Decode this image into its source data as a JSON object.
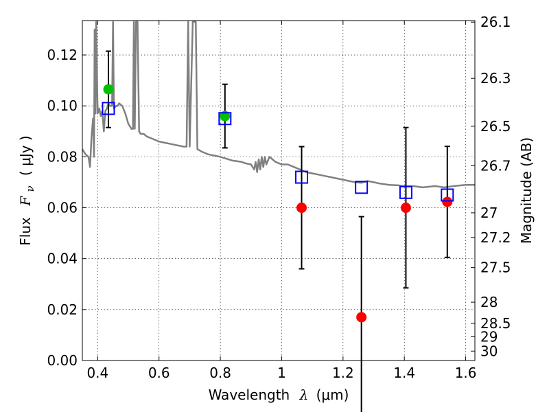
{
  "chart_data": {
    "type": "scatter",
    "xlabel": {
      "text": "Wavelength",
      "symbol": "λ",
      "unit": "(μm)"
    },
    "ylabel": {
      "text": "Flux",
      "symbol": "F",
      "subscript": "ν",
      "unit": "( μJy )"
    },
    "y2label": "Magnitude (AB)",
    "xlim": [
      0.35,
      1.63
    ],
    "ylim": [
      0.0,
      0.1335
    ],
    "grid": true,
    "x_ticks": [
      {
        "value": 0.4,
        "label": "0.4"
      },
      {
        "value": 0.6,
        "label": "0.6"
      },
      {
        "value": 0.8,
        "label": "0.8"
      },
      {
        "value": 1.0,
        "label": "1"
      },
      {
        "value": 1.2,
        "label": "1.2"
      },
      {
        "value": 1.4,
        "label": "1.4"
      },
      {
        "value": 1.6,
        "label": "1.6"
      }
    ],
    "y_ticks": [
      {
        "value": 0.0,
        "label": "0.00"
      },
      {
        "value": 0.02,
        "label": "0.02"
      },
      {
        "value": 0.04,
        "label": "0.04"
      },
      {
        "value": 0.06,
        "label": "0.06"
      },
      {
        "value": 0.08,
        "label": "0.08"
      },
      {
        "value": 0.1,
        "label": "0.10"
      },
      {
        "value": 0.12,
        "label": "0.12"
      }
    ],
    "y2_ticks": [
      {
        "label": "26.1",
        "flux": 0.1329
      },
      {
        "label": "26.3",
        "flux": 0.1108
      },
      {
        "label": "26.5",
        "flux": 0.092
      },
      {
        "label": "26.7",
        "flux": 0.0765
      },
      {
        "label": "27",
        "flux": 0.058
      },
      {
        "label": "27.2",
        "flux": 0.0483
      },
      {
        "label": "27.5",
        "flux": 0.0365
      },
      {
        "label": "28",
        "flux": 0.0229
      },
      {
        "label": "28.5",
        "flux": 0.0146
      },
      {
        "label": "29",
        "flux": 0.0093
      },
      {
        "label": "30",
        "flux": 0.0037
      }
    ],
    "series": [
      {
        "kind": "model",
        "color": "#808080",
        "points": [
          [
            0.35,
            0.083
          ],
          [
            0.36,
            0.081
          ],
          [
            0.37,
            0.08
          ],
          [
            0.375,
            0.076
          ],
          [
            0.38,
            0.088
          ],
          [
            0.385,
            0.095
          ],
          [
            0.388,
            0.08
          ],
          [
            0.39,
            0.13
          ],
          [
            0.393,
            0.097
          ],
          [
            0.395,
            0.133
          ],
          [
            0.4,
            0.097
          ],
          [
            0.405,
            0.099
          ],
          [
            0.41,
            0.096
          ],
          [
            0.415,
            0.098
          ],
          [
            0.42,
            0.09
          ],
          [
            0.425,
            0.098
          ],
          [
            0.43,
            0.099
          ],
          [
            0.435,
            0.101
          ],
          [
            0.44,
            0.1
          ],
          [
            0.447,
            0.1
          ],
          [
            0.45,
            0.133
          ],
          [
            0.453,
            0.099
          ],
          [
            0.46,
            0.1
          ],
          [
            0.465,
            0.1
          ],
          [
            0.47,
            0.101
          ],
          [
            0.48,
            0.1
          ],
          [
            0.49,
            0.097
          ],
          [
            0.5,
            0.093
          ],
          [
            0.51,
            0.091
          ],
          [
            0.515,
            0.091
          ],
          [
            0.518,
            0.133
          ],
          [
            0.521,
            0.091
          ],
          [
            0.525,
            0.133
          ],
          [
            0.53,
            0.133
          ],
          [
            0.535,
            0.09
          ],
          [
            0.54,
            0.089
          ],
          [
            0.55,
            0.089
          ],
          [
            0.56,
            0.088
          ],
          [
            0.58,
            0.087
          ],
          [
            0.6,
            0.086
          ],
          [
            0.62,
            0.0855
          ],
          [
            0.64,
            0.085
          ],
          [
            0.66,
            0.0845
          ],
          [
            0.68,
            0.084
          ],
          [
            0.69,
            0.084
          ],
          [
            0.695,
            0.133
          ],
          [
            0.7,
            0.084
          ],
          [
            0.71,
            0.133
          ],
          [
            0.72,
            0.133
          ],
          [
            0.725,
            0.083
          ],
          [
            0.74,
            0.082
          ],
          [
            0.76,
            0.081
          ],
          [
            0.8,
            0.08
          ],
          [
            0.84,
            0.0785
          ],
          [
            0.87,
            0.078
          ],
          [
            0.88,
            0.0775
          ],
          [
            0.9,
            0.077
          ],
          [
            0.91,
            0.075
          ],
          [
            0.915,
            0.078
          ],
          [
            0.92,
            0.074
          ],
          [
            0.925,
            0.079
          ],
          [
            0.93,
            0.075
          ],
          [
            0.935,
            0.08
          ],
          [
            0.94,
            0.076
          ],
          [
            0.945,
            0.08
          ],
          [
            0.95,
            0.077
          ],
          [
            0.96,
            0.08
          ],
          [
            0.97,
            0.079
          ],
          [
            0.98,
            0.078
          ],
          [
            1.0,
            0.077
          ],
          [
            1.02,
            0.077
          ],
          [
            1.04,
            0.076
          ],
          [
            1.06,
            0.075
          ],
          [
            1.08,
            0.074
          ],
          [
            1.1,
            0.0735
          ],
          [
            1.12,
            0.073
          ],
          [
            1.14,
            0.0725
          ],
          [
            1.16,
            0.072
          ],
          [
            1.18,
            0.0715
          ],
          [
            1.2,
            0.071
          ],
          [
            1.22,
            0.0705
          ],
          [
            1.24,
            0.07
          ],
          [
            1.26,
            0.0698
          ],
          [
            1.28,
            0.0705
          ],
          [
            1.3,
            0.07
          ],
          [
            1.32,
            0.0695
          ],
          [
            1.35,
            0.069
          ],
          [
            1.38,
            0.0688
          ],
          [
            1.4,
            0.0685
          ],
          [
            1.43,
            0.0685
          ],
          [
            1.46,
            0.068
          ],
          [
            1.5,
            0.0685
          ],
          [
            1.53,
            0.068
          ],
          [
            1.56,
            0.0685
          ],
          [
            1.6,
            0.069
          ],
          [
            1.63,
            0.069
          ]
        ]
      },
      {
        "kind": "model-photometry",
        "color": "#0000ff",
        "points": [
          [
            0.435,
            0.099
          ],
          [
            0.815,
            0.095
          ],
          [
            1.065,
            0.072
          ],
          [
            1.26,
            0.068
          ],
          [
            1.405,
            0.066
          ],
          [
            1.54,
            0.065
          ]
        ]
      },
      {
        "kind": "observed",
        "points": [
          {
            "x": 0.435,
            "y": 0.1065,
            "err": 0.015,
            "color": "#00c000"
          },
          {
            "x": 0.815,
            "y": 0.096,
            "err": 0.0125,
            "color": "#00c000"
          },
          {
            "x": 1.065,
            "y": 0.06,
            "err": 0.024,
            "color": "#ff0000"
          },
          {
            "x": 1.26,
            "y": 0.017,
            "err": 0.0395,
            "color": "#ff0000"
          },
          {
            "x": 1.405,
            "y": 0.06,
            "err": 0.0315,
            "color": "#ff0000"
          },
          {
            "x": 1.54,
            "y": 0.0623,
            "err": 0.0218,
            "color": "#ff0000"
          }
        ]
      }
    ]
  }
}
